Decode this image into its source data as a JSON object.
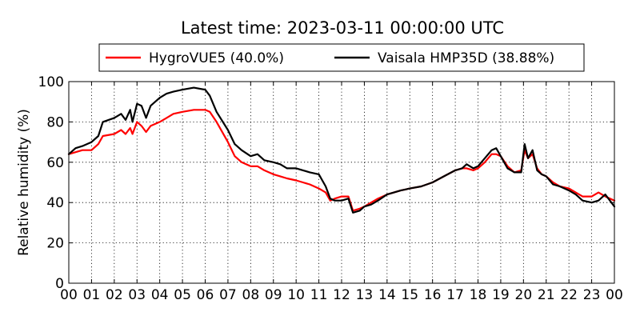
{
  "chart_data": {
    "type": "line",
    "title": "Latest time: 2023-03-11 00:00:00 UTC",
    "xlabel": "",
    "ylabel": "Relative humidity (%)",
    "xlim": [
      0,
      24
    ],
    "ylim": [
      0,
      100
    ],
    "x_ticks": [
      0,
      1,
      2,
      3,
      4,
      5,
      6,
      7,
      8,
      9,
      10,
      11,
      12,
      13,
      14,
      15,
      16,
      17,
      18,
      19,
      20,
      21,
      22,
      23,
      24
    ],
    "x_tick_labels": [
      "00",
      "01",
      "02",
      "03",
      "04",
      "05",
      "06",
      "07",
      "08",
      "09",
      "10",
      "11",
      "12",
      "13",
      "14",
      "15",
      "16",
      "17",
      "18",
      "19",
      "20",
      "21",
      "22",
      "23",
      "00"
    ],
    "y_ticks": [
      0,
      20,
      40,
      60,
      80,
      100
    ],
    "y_tick_labels": [
      "0",
      "20",
      "40",
      "60",
      "80",
      "100"
    ],
    "grid": true,
    "legend_position": "top-outside",
    "series": [
      {
        "name": "HygroVUE5 (40.0%)",
        "color": "#ff0000",
        "x": [
          0,
          0.3,
          0.6,
          1,
          1.3,
          1.5,
          2,
          2.3,
          2.5,
          2.7,
          2.8,
          3,
          3.2,
          3.4,
          3.6,
          3.8,
          4,
          4.3,
          4.6,
          5,
          5.5,
          6,
          6.2,
          6.5,
          7,
          7.3,
          7.6,
          8,
          8.3,
          8.6,
          9,
          9.3,
          9.6,
          10,
          10.3,
          10.6,
          11,
          11.3,
          11.5,
          11.7,
          12,
          12.3,
          12.5,
          12.8,
          13,
          13.3,
          13.6,
          14,
          14.3,
          14.6,
          15,
          15.5,
          16,
          16.5,
          17,
          17.3,
          17.5,
          17.8,
          18,
          18.3,
          18.6,
          18.8,
          19,
          19.3,
          19.6,
          19.9,
          20.05,
          20.2,
          20.4,
          20.6,
          20.8,
          21,
          21.3,
          21.6,
          22,
          22.3,
          22.6,
          23,
          23.3,
          23.6,
          24
        ],
        "y": [
          64,
          65,
          66,
          66,
          69,
          73,
          74,
          76,
          74,
          77,
          74,
          80,
          78,
          75,
          78,
          79,
          80,
          82,
          84,
          85,
          86,
          86,
          85,
          80,
          70,
          63,
          60,
          58,
          58,
          56,
          54,
          53,
          52,
          51,
          50,
          49,
          47,
          45,
          41,
          42,
          43,
          43,
          36,
          37,
          38,
          40,
          42,
          44,
          45,
          46,
          47,
          48,
          50,
          53,
          56,
          57,
          57,
          56,
          57,
          60,
          64,
          64,
          63,
          58,
          55,
          56,
          66,
          62,
          64,
          57,
          54,
          53,
          50,
          48,
          47,
          45,
          43,
          43,
          45,
          43,
          41
        ]
      },
      {
        "name": "Vaisala HMP35D (38.88%)",
        "color": "#000000",
        "x": [
          0,
          0.3,
          0.6,
          1,
          1.3,
          1.5,
          2,
          2.3,
          2.5,
          2.7,
          2.8,
          3,
          3.2,
          3.4,
          3.6,
          3.8,
          4,
          4.3,
          4.6,
          5,
          5.5,
          6,
          6.2,
          6.5,
          7,
          7.3,
          7.6,
          8,
          8.3,
          8.6,
          9,
          9.3,
          9.6,
          10,
          10.3,
          10.6,
          11,
          11.3,
          11.5,
          11.7,
          12,
          12.3,
          12.5,
          12.8,
          13,
          13.3,
          13.6,
          14,
          14.3,
          14.6,
          15,
          15.5,
          16,
          16.5,
          17,
          17.3,
          17.5,
          17.8,
          18,
          18.3,
          18.6,
          18.8,
          19,
          19.3,
          19.6,
          19.9,
          20.05,
          20.2,
          20.4,
          20.6,
          20.8,
          21,
          21.3,
          21.6,
          22,
          22.3,
          22.6,
          23,
          23.3,
          23.6,
          24
        ],
        "y": [
          64,
          67,
          68,
          70,
          73,
          80,
          82,
          84,
          81,
          86,
          80,
          89,
          88,
          82,
          88,
          90,
          92,
          94,
          95,
          96,
          97,
          96,
          93,
          85,
          76,
          69,
          66,
          63,
          64,
          61,
          60,
          59,
          57,
          57,
          56,
          55,
          54,
          48,
          42,
          41,
          41,
          42,
          35,
          36,
          38,
          39,
          41,
          44,
          45,
          46,
          47,
          48,
          50,
          53,
          56,
          57,
          59,
          57,
          58,
          62,
          66,
          67,
          63,
          57,
          55,
          55,
          69,
          62,
          66,
          56,
          54,
          53,
          49,
          48,
          46,
          44,
          41,
          40,
          41,
          44,
          38
        ]
      }
    ]
  }
}
